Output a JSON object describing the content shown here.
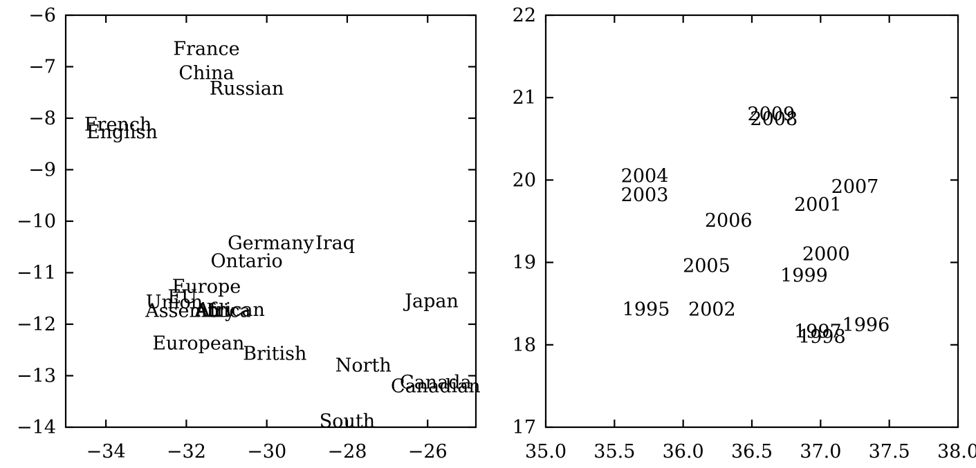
{
  "chart_data": [
    {
      "type": "scatter",
      "title": "",
      "xlabel": "",
      "ylabel": "",
      "xlim": [
        -35,
        -24.8
      ],
      "ylim": [
        -14,
        -6
      ],
      "xticks": [
        -34,
        -32,
        -30,
        -28,
        -26
      ],
      "xtick_labels": [
        "−34",
        "−32",
        "−30",
        "−28",
        "−26"
      ],
      "yticks": [
        -14,
        -13,
        -12,
        -11,
        -10,
        -9,
        -8,
        -7,
        -6
      ],
      "ytick_labels": [
        "−14",
        "−13",
        "−12",
        "−11",
        "−10",
        "−9",
        "−8",
        "−7",
        "−6"
      ],
      "grid": false,
      "points": [
        {
          "label": "France",
          "x": -31.5,
          "y": -6.65
        },
        {
          "label": "China",
          "x": -31.5,
          "y": -7.12
        },
        {
          "label": "Russian",
          "x": -30.5,
          "y": -7.42
        },
        {
          "label": "French",
          "x": -33.7,
          "y": -8.12
        },
        {
          "label": "English",
          "x": -33.6,
          "y": -8.27
        },
        {
          "label": "Germany",
          "x": -29.9,
          "y": -10.42
        },
        {
          "label": "Iraq",
          "x": -28.3,
          "y": -10.42
        },
        {
          "label": "Ontario",
          "x": -30.5,
          "y": -10.77
        },
        {
          "label": "Europe",
          "x": -31.5,
          "y": -11.27
        },
        {
          "label": "EU",
          "x": -32.1,
          "y": -11.47
        },
        {
          "label": "Union",
          "x": -32.3,
          "y": -11.57
        },
        {
          "label": "Assembly",
          "x": -31.9,
          "y": -11.74
        },
        {
          "label": "African",
          "x": -30.9,
          "y": -11.72
        },
        {
          "label": "Africa",
          "x": -31.1,
          "y": -11.74
        },
        {
          "label": "Japan",
          "x": -25.9,
          "y": -11.55
        },
        {
          "label": "European",
          "x": -31.7,
          "y": -12.37
        },
        {
          "label": "British",
          "x": -29.8,
          "y": -12.57
        },
        {
          "label": "North",
          "x": -27.6,
          "y": -12.8
        },
        {
          "label": "Canada",
          "x": -25.8,
          "y": -13.13
        },
        {
          "label": "Canadian",
          "x": -25.8,
          "y": -13.2
        },
        {
          "label": "South",
          "x": -28.0,
          "y": -13.88
        }
      ]
    },
    {
      "type": "scatter",
      "title": "",
      "xlabel": "",
      "ylabel": "",
      "xlim": [
        35.0,
        38.0
      ],
      "ylim": [
        17,
        22
      ],
      "xticks": [
        35.0,
        35.5,
        36.0,
        36.5,
        37.0,
        37.5,
        38.0
      ],
      "xtick_labels": [
        "35.0",
        "35.5",
        "36.0",
        "36.5",
        "37.0",
        "37.5",
        "38.0"
      ],
      "yticks": [
        17,
        18,
        19,
        20,
        21,
        22
      ],
      "ytick_labels": [
        "17",
        "18",
        "19",
        "20",
        "21",
        "22"
      ],
      "grid": false,
      "points": [
        {
          "label": "2009",
          "x": 36.64,
          "y": 20.8
        },
        {
          "label": "2008",
          "x": 36.66,
          "y": 20.74
        },
        {
          "label": "2004",
          "x": 35.72,
          "y": 20.05
        },
        {
          "label": "2007",
          "x": 37.25,
          "y": 19.92
        },
        {
          "label": "2003",
          "x": 35.72,
          "y": 19.82
        },
        {
          "label": "2001",
          "x": 36.98,
          "y": 19.7
        },
        {
          "label": "2006",
          "x": 36.33,
          "y": 19.51
        },
        {
          "label": "2000",
          "x": 37.04,
          "y": 19.1
        },
        {
          "label": "2005",
          "x": 36.17,
          "y": 18.96
        },
        {
          "label": "1999",
          "x": 36.88,
          "y": 18.84
        },
        {
          "label": "1995",
          "x": 35.73,
          "y": 18.43
        },
        {
          "label": "2002",
          "x": 36.21,
          "y": 18.43
        },
        {
          "label": "1996",
          "x": 37.33,
          "y": 18.24
        },
        {
          "label": "1997",
          "x": 36.98,
          "y": 18.16
        },
        {
          "label": "1998",
          "x": 37.01,
          "y": 18.1
        }
      ]
    }
  ]
}
